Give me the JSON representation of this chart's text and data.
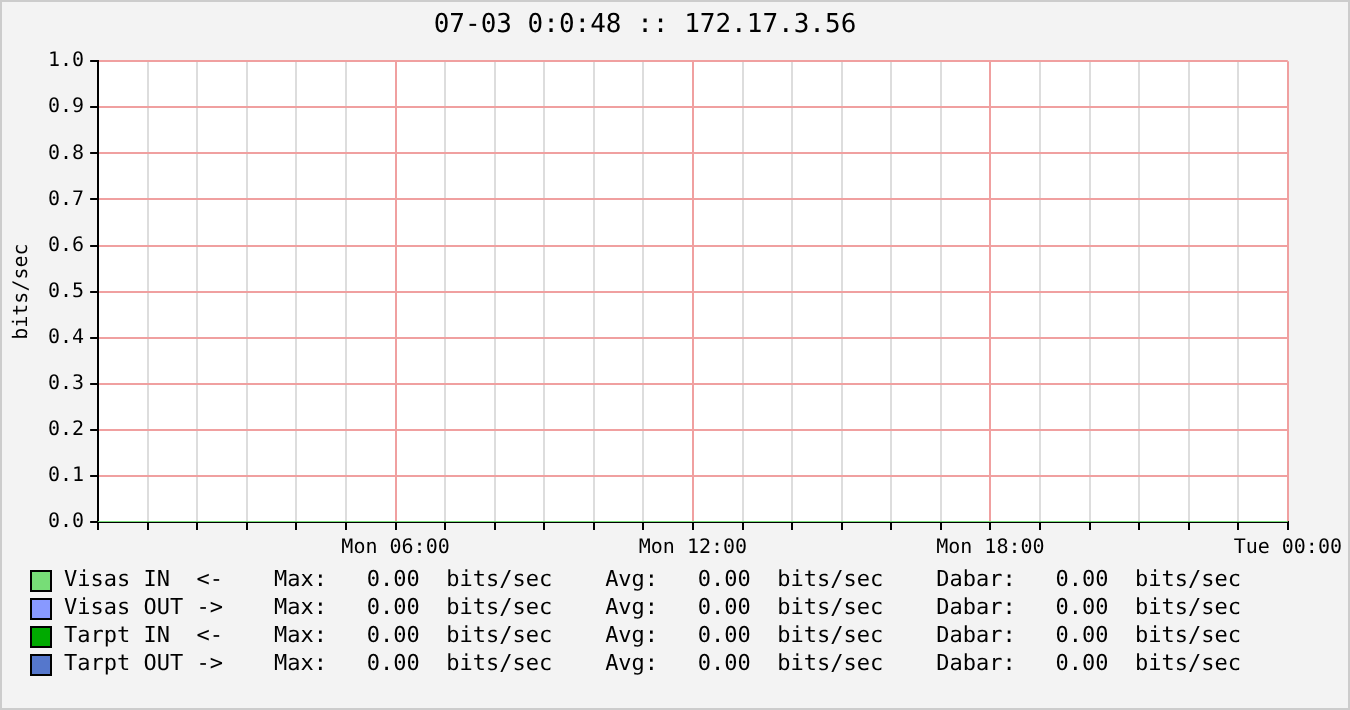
{
  "chart_data": {
    "type": "line",
    "title": "07-03 0:0:48 :: 172.17.3.56",
    "ylabel": "bits/sec",
    "categories": [
      null,
      null,
      null,
      null,
      null,
      null,
      "Mon 06:00",
      null,
      null,
      null,
      null,
      null,
      "Mon 12:00",
      null,
      null,
      null,
      null,
      null,
      "Mon 18:00",
      null,
      null,
      null,
      null,
      null,
      "Tue 00:00"
    ],
    "series": [
      {
        "name": "Visas IN  <-",
        "color": "#77dd77",
        "values": [
          0,
          0,
          0,
          0,
          0,
          0,
          0,
          0,
          0,
          0,
          0,
          0,
          0,
          0,
          0,
          0,
          0,
          0,
          0,
          0,
          0,
          0,
          0,
          0,
          0
        ]
      },
      {
        "name": "Visas OUT ->",
        "color": "#8899ff",
        "values": [
          null,
          null,
          null,
          null,
          null,
          null,
          null,
          null,
          null,
          null,
          null,
          null,
          null,
          null,
          null,
          null,
          null,
          null,
          null,
          null,
          null,
          null,
          null,
          null,
          null
        ]
      },
      {
        "name": "Tarpt IN  <-",
        "color": "#00aa00",
        "values": [
          null,
          null,
          null,
          null,
          null,
          null,
          null,
          null,
          null,
          null,
          null,
          null,
          null,
          null,
          null,
          null,
          null,
          null,
          null,
          null,
          null,
          null,
          null,
          null,
          null
        ]
      },
      {
        "name": "Tarpt OUT ->",
        "color": "#5577cc",
        "values": [
          null,
          null,
          null,
          null,
          null,
          null,
          null,
          null,
          null,
          null,
          null,
          null,
          null,
          null,
          null,
          null,
          null,
          null,
          null,
          null,
          null,
          null,
          null,
          null,
          null
        ]
      }
    ],
    "annotations": [
      "Max:   0.00  bits/sec    Avg:   0.00  bits/sec    Dabar:   0.00  bits/sec",
      "Max:   0.00  bits/sec    Avg:   0.00  bits/sec    Dabar:   0.00  bits/sec",
      "Max:   0.00  bits/sec    Avg:   0.00  bits/sec    Dabar:   0.00  bits/sec",
      "Max:   0.00  bits/sec    Avg:   0.00  bits/sec    Dabar:   0.00  bits/sec"
    ],
    "ylim": [
      0,
      1
    ],
    "yticks": [
      {
        "value": 0,
        "label": "0.0"
      },
      0.1,
      0.2,
      0.3,
      0.4,
      0.5,
      0.6,
      0.7,
      0.8,
      0.9,
      {
        "value": 1,
        "label": "1.0"
      }
    ],
    "grid": true,
    "legend": "bottom",
    "marker": "none",
    "line_style": "solid"
  }
}
